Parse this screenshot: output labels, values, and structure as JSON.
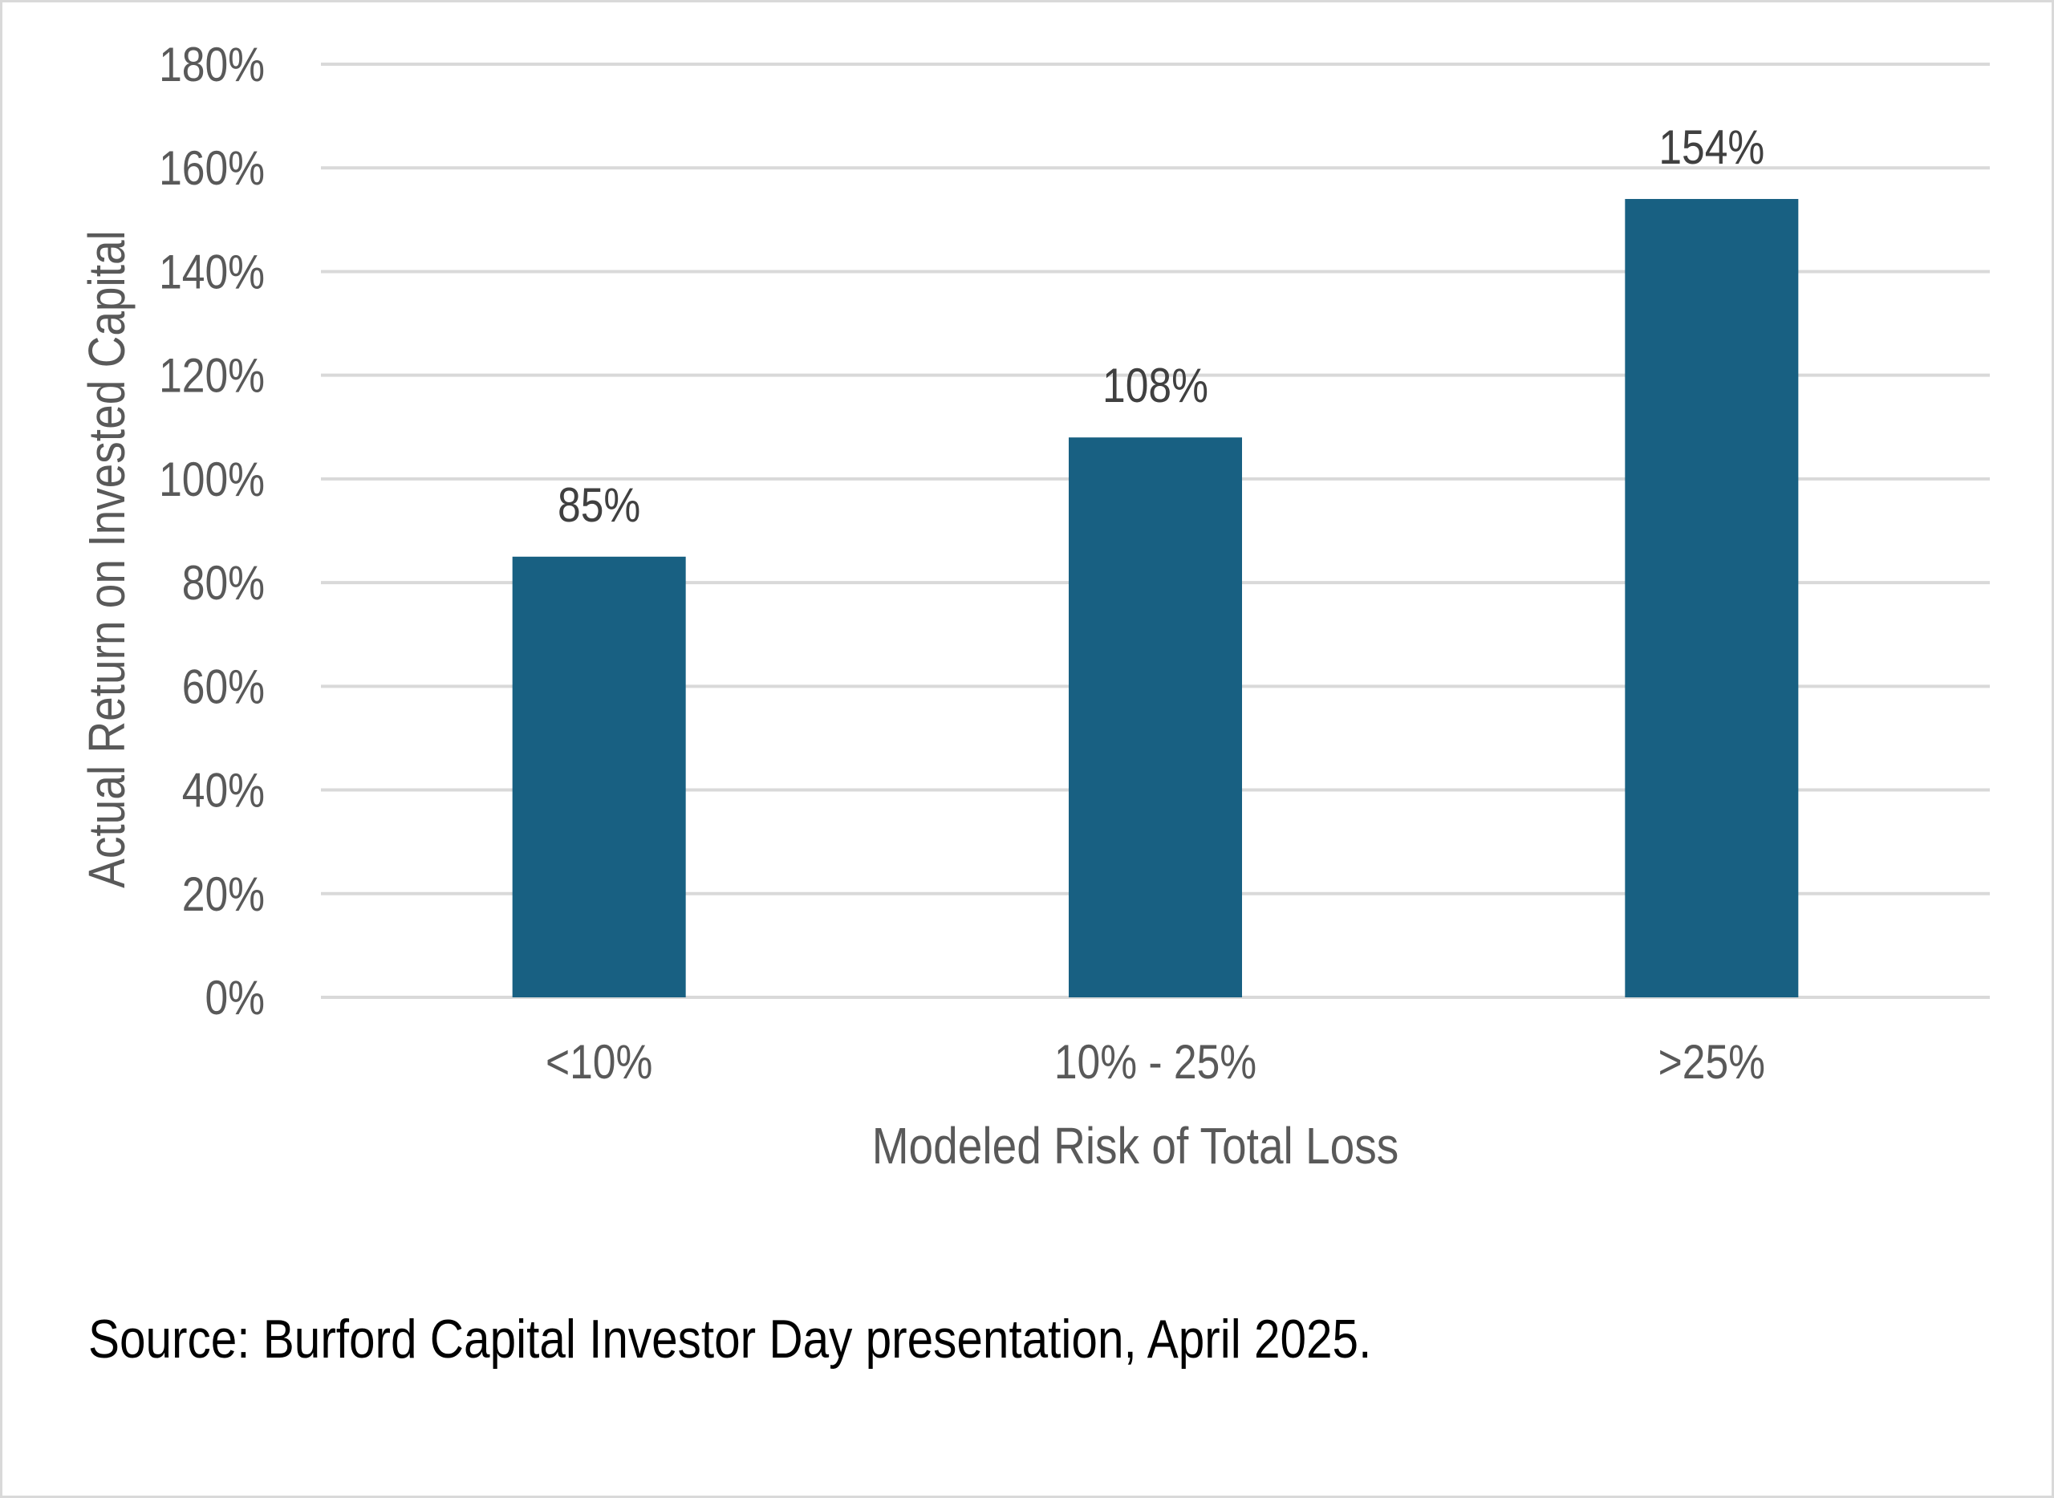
{
  "chart_data": {
    "type": "bar",
    "categories": [
      "<10%",
      "10% - 25%",
      ">25%"
    ],
    "values": [
      85,
      108,
      154
    ],
    "data_labels": [
      "85%",
      "108%",
      "154%"
    ],
    "xlabel": "Modeled Risk of Total Loss",
    "ylabel": "Actual Return on Invested Capital",
    "ylim": [
      0,
      180
    ],
    "y_ticks": [
      {
        "value": 0,
        "label": "0%"
      },
      {
        "value": 20,
        "label": "20%"
      },
      {
        "value": 40,
        "label": "40%"
      },
      {
        "value": 60,
        "label": "60%"
      },
      {
        "value": 80,
        "label": "80%"
      },
      {
        "value": 100,
        "label": "100%"
      },
      {
        "value": 120,
        "label": "120%"
      },
      {
        "value": 140,
        "label": "140%"
      },
      {
        "value": 160,
        "label": "160%"
      },
      {
        "value": 180,
        "label": "180%"
      }
    ],
    "grid": true,
    "legend": "none",
    "colors": {
      "bar": "#186082",
      "gridline": "#d9d9d9",
      "tick_label": "#595959",
      "data_label": "#404040",
      "axis_title": "#595959"
    }
  },
  "source_note": "Source: Burford Capital Investor Day presentation, April 2025."
}
